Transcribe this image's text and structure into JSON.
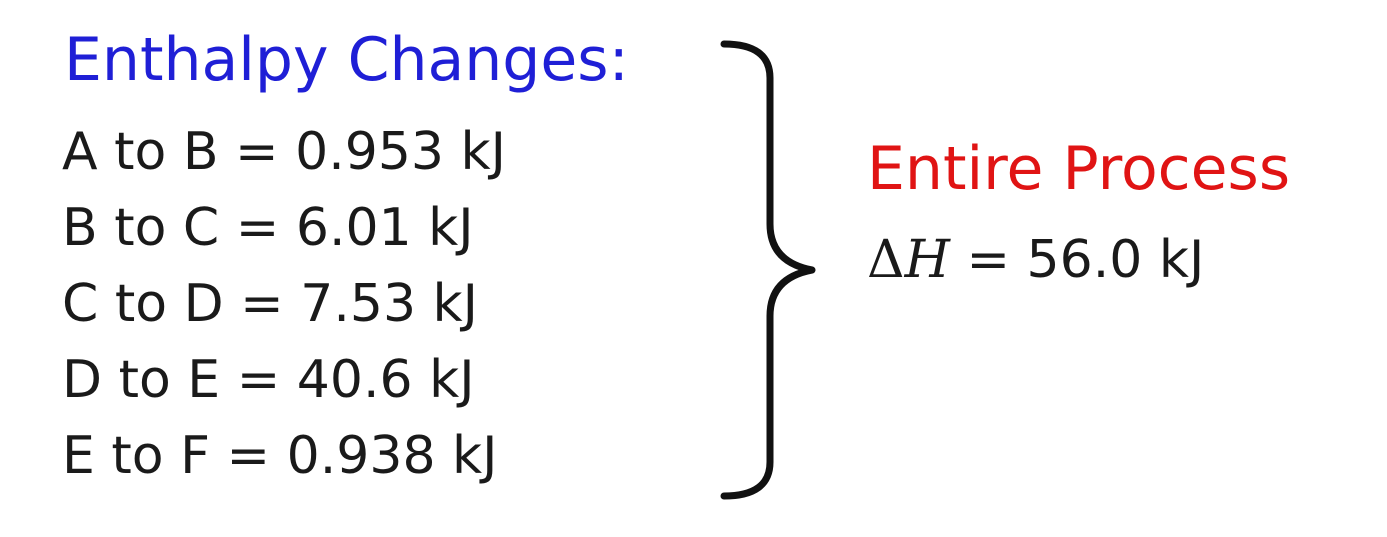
{
  "enthalpy": {
    "heading": "Enthalpy Changes:",
    "heading_color": "#1f1fd6",
    "rows": [
      "A to B = 0.953 kJ",
      "B to C = 6.01 kJ",
      "C to D = 7.53 kJ",
      "D to E = 40.6 kJ",
      "E to F = 0.938 kJ"
    ]
  },
  "process": {
    "title": "Entire Process",
    "title_color": "#e01414",
    "delta_symbol": "Δ",
    "variable": "H",
    "value": " = 56.0 kJ"
  },
  "icons": {
    "brace": "right-curly-brace-icon"
  }
}
